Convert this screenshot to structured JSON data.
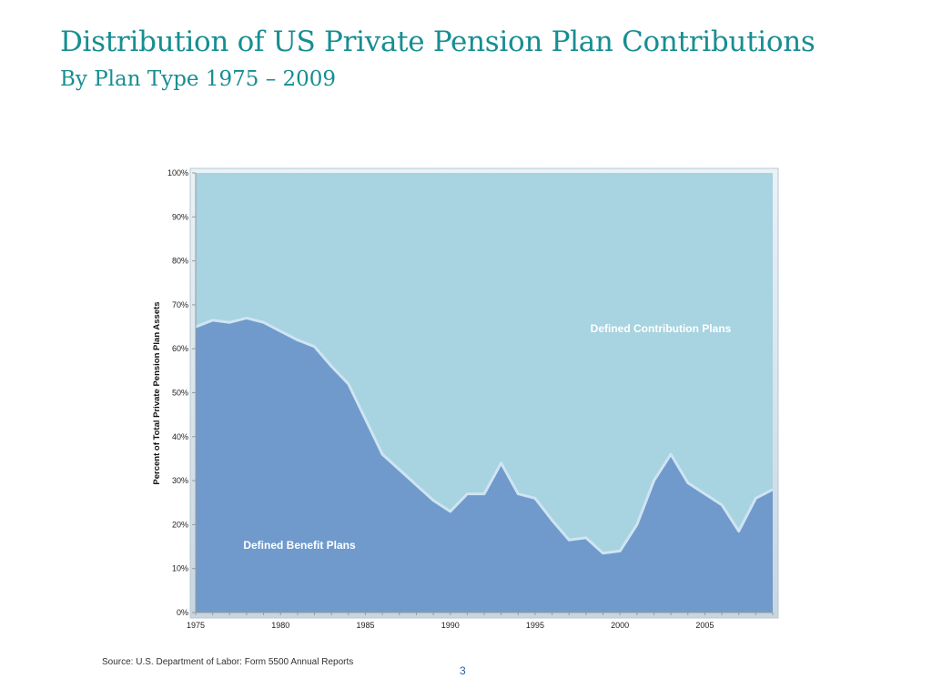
{
  "slide": {
    "title": "Distribution of US Private Pension Plan Contributions",
    "subtitle": "By Plan Type 1975 – 2009",
    "source": "Source: U.S. Department of Labor: Form 5500 Annual Reports",
    "page_number": "3"
  },
  "colors": {
    "title": "#168e92",
    "defined_benefit": "#6f9acb",
    "defined_contribution": "#a8d3e0",
    "boundary_highlight": "#cfe4f3"
  },
  "chart_data": {
    "type": "area",
    "stacked": true,
    "ylabel": "Percent of Total Private Pension Plan Assets",
    "xlim": [
      1975,
      2009
    ],
    "ylim": [
      0,
      100
    ],
    "x_ticks": [
      1975,
      1980,
      1985,
      1990,
      1995,
      2000,
      2005
    ],
    "x_tick_labels": [
      "1975",
      "1980",
      "1985",
      "1990",
      "1995",
      "2000",
      "2005"
    ],
    "y_ticks": [
      0,
      10,
      20,
      30,
      40,
      50,
      60,
      70,
      80,
      90,
      100
    ],
    "y_tick_labels": [
      "0%",
      "10%",
      "20%",
      "30%",
      "40%",
      "50%",
      "60%",
      "70%",
      "80%",
      "90%",
      "100%"
    ],
    "grid": false,
    "x": [
      1975,
      1976,
      1977,
      1978,
      1979,
      1980,
      1981,
      1982,
      1983,
      1984,
      1985,
      1986,
      1987,
      1988,
      1989,
      1990,
      1991,
      1992,
      1993,
      1994,
      1995,
      1996,
      1997,
      1998,
      1999,
      2000,
      2001,
      2002,
      2003,
      2004,
      2005,
      2006,
      2007,
      2008,
      2009
    ],
    "series": [
      {
        "name": "Defined Benefit Plans",
        "values": [
          65,
          66.5,
          66,
          67,
          66,
          64,
          62,
          60.5,
          56,
          52,
          44,
          36,
          32.5,
          29,
          25.5,
          23,
          27,
          27,
          34,
          27,
          26,
          21,
          16.5,
          17,
          13.5,
          14,
          20,
          30,
          36,
          29.5,
          27,
          24.5,
          18.5,
          26,
          28
        ]
      },
      {
        "name": "Defined Contribution Plans",
        "values": [
          35,
          33.5,
          34,
          33,
          34,
          36,
          38,
          39.5,
          44,
          48,
          56,
          64,
          67.5,
          71,
          74.5,
          77,
          73,
          73,
          66,
          73,
          74,
          79,
          83.5,
          83,
          86.5,
          86,
          80,
          70,
          64,
          70.5,
          73,
          75.5,
          81.5,
          74,
          72
        ]
      }
    ]
  }
}
